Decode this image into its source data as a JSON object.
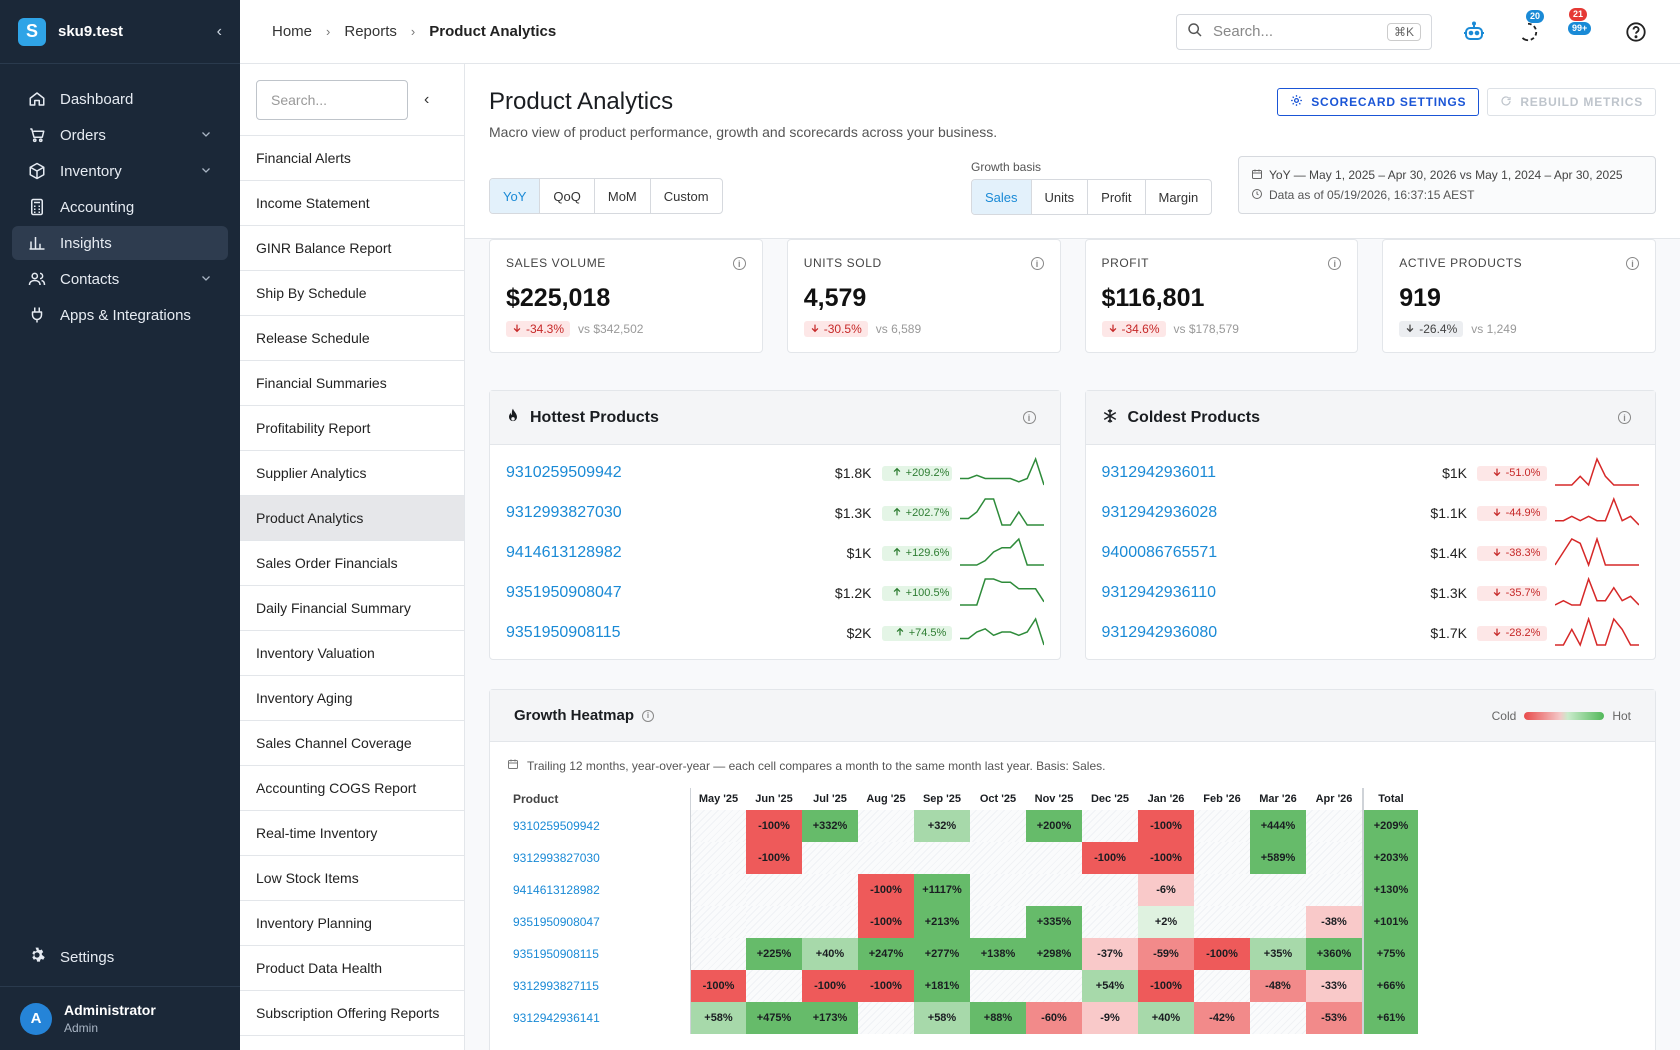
{
  "brand": {
    "name": "sku9.test",
    "logo_letter": "S"
  },
  "nav": {
    "items": [
      {
        "label": "Dashboard",
        "icon": "home-icon",
        "expandable": false,
        "active": false
      },
      {
        "label": "Orders",
        "icon": "cart-icon",
        "expandable": true,
        "active": false
      },
      {
        "label": "Inventory",
        "icon": "box-icon",
        "expandable": true,
        "active": false
      },
      {
        "label": "Accounting",
        "icon": "calculator-icon",
        "expandable": false,
        "active": false
      },
      {
        "label": "Insights",
        "icon": "chart-icon",
        "expandable": false,
        "active": true
      },
      {
        "label": "Contacts",
        "icon": "people-icon",
        "expandable": true,
        "active": false
      },
      {
        "label": "Apps & Integrations",
        "icon": "plug-icon",
        "expandable": false,
        "active": false
      }
    ],
    "settings_label": "Settings",
    "user": {
      "initial": "A",
      "name": "Administrator",
      "role": "Admin"
    }
  },
  "topbar": {
    "breadcrumbs": [
      "Home",
      "Reports",
      "Product Analytics"
    ],
    "search_placeholder": "Search...",
    "search_shortcut": "⌘K",
    "badges": {
      "activity": "20",
      "alerts_top": "21",
      "alerts_bottom": "99+"
    }
  },
  "reports": {
    "search_placeholder": "Search...",
    "items": [
      "Financial Alerts",
      "Income Statement",
      "GINR Balance Report",
      "Ship By Schedule",
      "Release Schedule",
      "Financial Summaries",
      "Profitability Report",
      "Supplier Analytics",
      "Product Analytics",
      "Sales Order Financials",
      "Daily Financial Summary",
      "Inventory Valuation",
      "Inventory Aging",
      "Sales Channel Coverage",
      "Accounting COGS Report",
      "Real-time Inventory",
      "Low Stock Items",
      "Inventory Planning",
      "Product Data Health",
      "Subscription Offering Reports"
    ],
    "active_index": 8
  },
  "page": {
    "title": "Product Analytics",
    "subtitle": "Macro view of product performance, growth and scorecards across your business.",
    "scorecard_button": "SCORECARD SETTINGS",
    "rebuild_button": "REBUILD METRICS",
    "periods": [
      "YoY",
      "QoQ",
      "MoM",
      "Custom"
    ],
    "period_selected": "YoY",
    "growth_basis_label": "Growth basis",
    "bases": [
      "Sales",
      "Units",
      "Profit",
      "Margin"
    ],
    "basis_selected": "Sales",
    "date_range": "YoY — May 1, 2025 – Apr 30, 2026 vs May 1, 2024 – Apr 30, 2025",
    "data_as_of": "Data as of 05/19/2026, 16:37:15 AEST"
  },
  "kpis": [
    {
      "label": "SALES VOLUME",
      "value": "$225,018",
      "delta": "-34.3%",
      "delta_type": "neg",
      "compare": "vs $342,502"
    },
    {
      "label": "UNITS SOLD",
      "value": "4,579",
      "delta": "-30.5%",
      "delta_type": "neg",
      "compare": "vs 6,589"
    },
    {
      "label": "PROFIT",
      "value": "$116,801",
      "delta": "-34.6%",
      "delta_type": "neg",
      "compare": "vs $178,579"
    },
    {
      "label": "ACTIVE PRODUCTS",
      "value": "919",
      "delta": "-26.4%",
      "delta_type": "neutral",
      "compare": "vs 1,249"
    }
  ],
  "hottest": {
    "title": "Hottest Products",
    "color": "#2e8b3a",
    "rows": [
      {
        "sku": "9310259509942",
        "value": "$1.8K",
        "delta": "+209.2%",
        "spark": [
          3,
          3,
          4,
          3,
          3,
          3,
          3,
          2,
          3,
          9,
          1
        ]
      },
      {
        "sku": "9312993827030",
        "value": "$1.3K",
        "delta": "+202.7%",
        "spark": [
          3,
          3,
          5,
          9,
          9,
          1,
          1,
          5,
          1,
          1,
          1
        ]
      },
      {
        "sku": "9414613128982",
        "value": "$1K",
        "delta": "+129.6%",
        "spark": [
          1,
          1,
          1,
          2,
          4,
          5,
          5,
          7,
          1,
          1,
          1
        ]
      },
      {
        "sku": "9351950908047",
        "value": "$1.2K",
        "delta": "+100.5%",
        "spark": [
          1,
          1,
          1,
          9,
          9,
          8,
          8,
          6,
          6,
          6,
          2
        ]
      },
      {
        "sku": "9351950908115",
        "value": "$2K",
        "delta": "+74.5%",
        "spark": [
          3,
          3,
          5,
          6,
          4,
          5,
          5,
          4,
          5,
          9,
          1
        ]
      }
    ]
  },
  "coldest": {
    "title": "Coldest Products",
    "color": "#d62828",
    "rows": [
      {
        "sku": "9312942936011",
        "value": "$1K",
        "delta": "-51.0%",
        "spark": [
          3,
          3,
          3,
          5,
          3,
          9,
          5,
          3,
          3,
          3,
          3
        ]
      },
      {
        "sku": "9312942936028",
        "value": "$1.1K",
        "delta": "-44.9%",
        "spark": [
          4,
          4,
          5,
          4,
          5,
          4,
          4,
          9,
          4,
          5,
          3
        ]
      },
      {
        "sku": "9400086765571",
        "value": "$1.4K",
        "delta": "-38.3%",
        "spark": [
          3,
          6,
          9,
          8,
          3,
          9,
          3,
          3,
          3,
          3,
          3
        ]
      },
      {
        "sku": "9312942936110",
        "value": "$1.3K",
        "delta": "-35.7%",
        "spark": [
          3,
          4,
          3,
          3,
          9,
          4,
          4,
          7,
          4,
          5,
          3
        ]
      },
      {
        "sku": "9312942936080",
        "value": "$1.7K",
        "delta": "-28.2%",
        "spark": [
          3,
          3,
          6,
          3,
          8,
          3,
          3,
          8,
          6,
          3,
          3
        ]
      }
    ]
  },
  "heatmap": {
    "title": "Growth Heatmap",
    "legend_cold": "Cold",
    "legend_hot": "Hot",
    "note": "Trailing 12 months, year-over-year — each cell compares a month to the same month last year. Basis: Sales.",
    "product_header": "Product",
    "months": [
      "May '25",
      "Jun '25",
      "Jul '25",
      "Aug '25",
      "Sep '25",
      "Oct '25",
      "Nov '25",
      "Dec '25",
      "Jan '26",
      "Feb '26",
      "Mar '26",
      "Apr '26"
    ],
    "total_header": "Total",
    "rows": [
      {
        "sku": "9310259509942",
        "cells": [
          null,
          "-100%",
          "+332%",
          null,
          "+32%",
          null,
          "+200%",
          null,
          "-100%",
          null,
          "+444%",
          null
        ],
        "total": "+209%"
      },
      {
        "sku": "9312993827030",
        "cells": [
          null,
          "-100%",
          null,
          null,
          null,
          null,
          null,
          "-100%",
          "-100%",
          null,
          "+589%",
          null
        ],
        "total": "+203%"
      },
      {
        "sku": "9414613128982",
        "cells": [
          null,
          null,
          null,
          "-100%",
          "+1117%",
          null,
          null,
          null,
          "-6%",
          null,
          null,
          null
        ],
        "total": "+130%"
      },
      {
        "sku": "9351950908047",
        "cells": [
          null,
          null,
          null,
          "-100%",
          "+213%",
          null,
          "+335%",
          null,
          "+2%",
          null,
          null,
          "-38%"
        ],
        "total": "+101%"
      },
      {
        "sku": "9351950908115",
        "cells": [
          null,
          "+225%",
          "+40%",
          "+247%",
          "+277%",
          "+138%",
          "+298%",
          "-37%",
          "-59%",
          "-100%",
          "+35%",
          "+360%"
        ],
        "total": "+75%"
      },
      {
        "sku": "9312993827115",
        "cells": [
          "-100%",
          null,
          "-100%",
          "-100%",
          "+181%",
          null,
          null,
          "+54%",
          "-100%",
          null,
          "-48%",
          "-33%"
        ],
        "total": "+66%"
      },
      {
        "sku": "9312942936141",
        "cells": [
          "+58%",
          "+475%",
          "+173%",
          null,
          "+58%",
          "+88%",
          "-60%",
          "-9%",
          "+40%",
          "-42%",
          null,
          "-53%"
        ],
        "total": "+61%"
      }
    ]
  }
}
